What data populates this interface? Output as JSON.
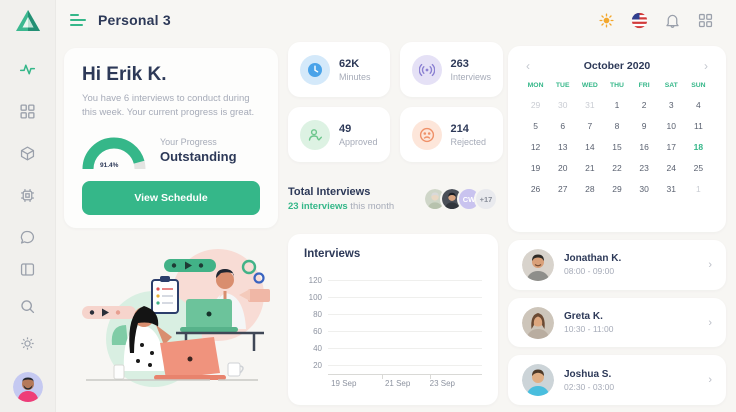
{
  "app": {
    "title": "Personal 3"
  },
  "theme": {
    "accent_green": "#35b789",
    "navy_text": "#2d3958",
    "muted_text": "#a6abb8",
    "page_bg": "#f7f6f3",
    "card_bg": "#ffffff"
  },
  "sidebar": {
    "icons": [
      "logo-triangle-icon",
      "activity-icon",
      "grid-icon",
      "cube-icon",
      "chip-icon",
      "chat-icon",
      "panel-icon",
      "search-icon",
      "gear-icon",
      "user-avatar"
    ]
  },
  "header": {
    "icons": [
      "menu-icon",
      "sun-icon",
      "us-flag-icon",
      "bell-icon",
      "apps-grid-icon"
    ]
  },
  "greeting": {
    "title": "Hi Erik K.",
    "subtitle": "You have 6 interviews to conduct during this week. Your current progress is great.",
    "progress_label": "Your Progress",
    "progress_value": "Outstanding",
    "progress_percent": "91.4%",
    "progress_percent_num": 91.4,
    "button_label": "View Schedule"
  },
  "stats": [
    {
      "value": "62K",
      "label": "Minutes",
      "icon": "clock-icon",
      "color": "#4aa3e9",
      "bg": "#d4e9fa"
    },
    {
      "value": "263",
      "label": "Interviews",
      "icon": "broadcast-icon",
      "color": "#8b80d2",
      "bg": "#e5e1f6"
    },
    {
      "value": "49",
      "label": "Approved",
      "icon": "user-check-icon",
      "color": "#6cc68c",
      "bg": "#ddf2e3"
    },
    {
      "value": "214",
      "label": "Rejected",
      "icon": "sad-face-icon",
      "color": "#ef9169",
      "bg": "#fde6da"
    }
  ],
  "total_interviews": {
    "title": "Total Interviews",
    "highlight": "23 interviews",
    "suffix": " this month",
    "avatar_initials": "CW",
    "avatar_more": "+17"
  },
  "chart_data": {
    "type": "line",
    "title": "Interviews",
    "x_ticks": [
      "19 Sep",
      "21 Sep",
      "23 Sep"
    ],
    "x_tick_pos": [
      0.02,
      0.37,
      0.66
    ],
    "y_ticks": [
      120,
      100,
      80,
      60,
      40,
      20
    ],
    "ylim": [
      20,
      120
    ],
    "grid": true,
    "series": []
  },
  "calendar": {
    "month_label": "October 2020",
    "prev_icon": "‹",
    "next_icon": "›",
    "day_names": [
      "MON",
      "TUE",
      "WED",
      "THU",
      "FRI",
      "SAT",
      "SUN"
    ],
    "weeks": [
      [
        "29",
        "30",
        "31",
        "1",
        "2",
        "3",
        "4"
      ],
      [
        "5",
        "6",
        "7",
        "8",
        "9",
        "10",
        "11"
      ],
      [
        "12",
        "13",
        "14",
        "15",
        "16",
        "17",
        "18"
      ],
      [
        "19",
        "20",
        "21",
        "22",
        "23",
        "24",
        "25"
      ],
      [
        "26",
        "27",
        "28",
        "29",
        "30",
        "31",
        "1"
      ]
    ],
    "muted_cells": [
      [
        0,
        0
      ],
      [
        0,
        1
      ],
      [
        0,
        2
      ],
      [
        4,
        6
      ]
    ],
    "selected_cell": [
      2,
      6
    ],
    "selected_day": "18"
  },
  "appointments": [
    {
      "name": "Jonathan K.",
      "time": "08:00 - 09:00",
      "chevron": "›"
    },
    {
      "name": "Greta K.",
      "time": "10:30 - 11:00",
      "chevron": "›"
    },
    {
      "name": "Joshua S.",
      "time": "02:30 - 03:00",
      "chevron": "›"
    }
  ]
}
